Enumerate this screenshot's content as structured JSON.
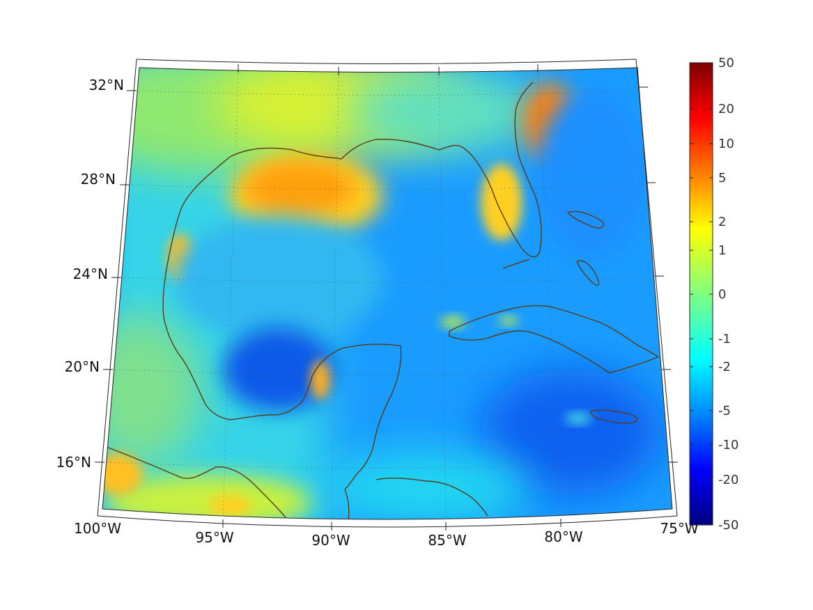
{
  "map": {
    "lon_labels": [
      "100°W",
      "95°W",
      "90°W",
      "85°W",
      "80°W",
      "75°W"
    ],
    "lat_labels": [
      "32°N",
      "28°N",
      "24°N",
      "20°N",
      "16°N"
    ],
    "colorbar": {
      "tick_labels": [
        "50",
        "20",
        "10",
        "5",
        "2",
        "1",
        "0",
        "-1",
        "-2",
        "-5",
        "-10",
        "-20",
        "-50"
      ],
      "colormap": "jet"
    },
    "coastline_color": "#5a3a14"
  }
}
